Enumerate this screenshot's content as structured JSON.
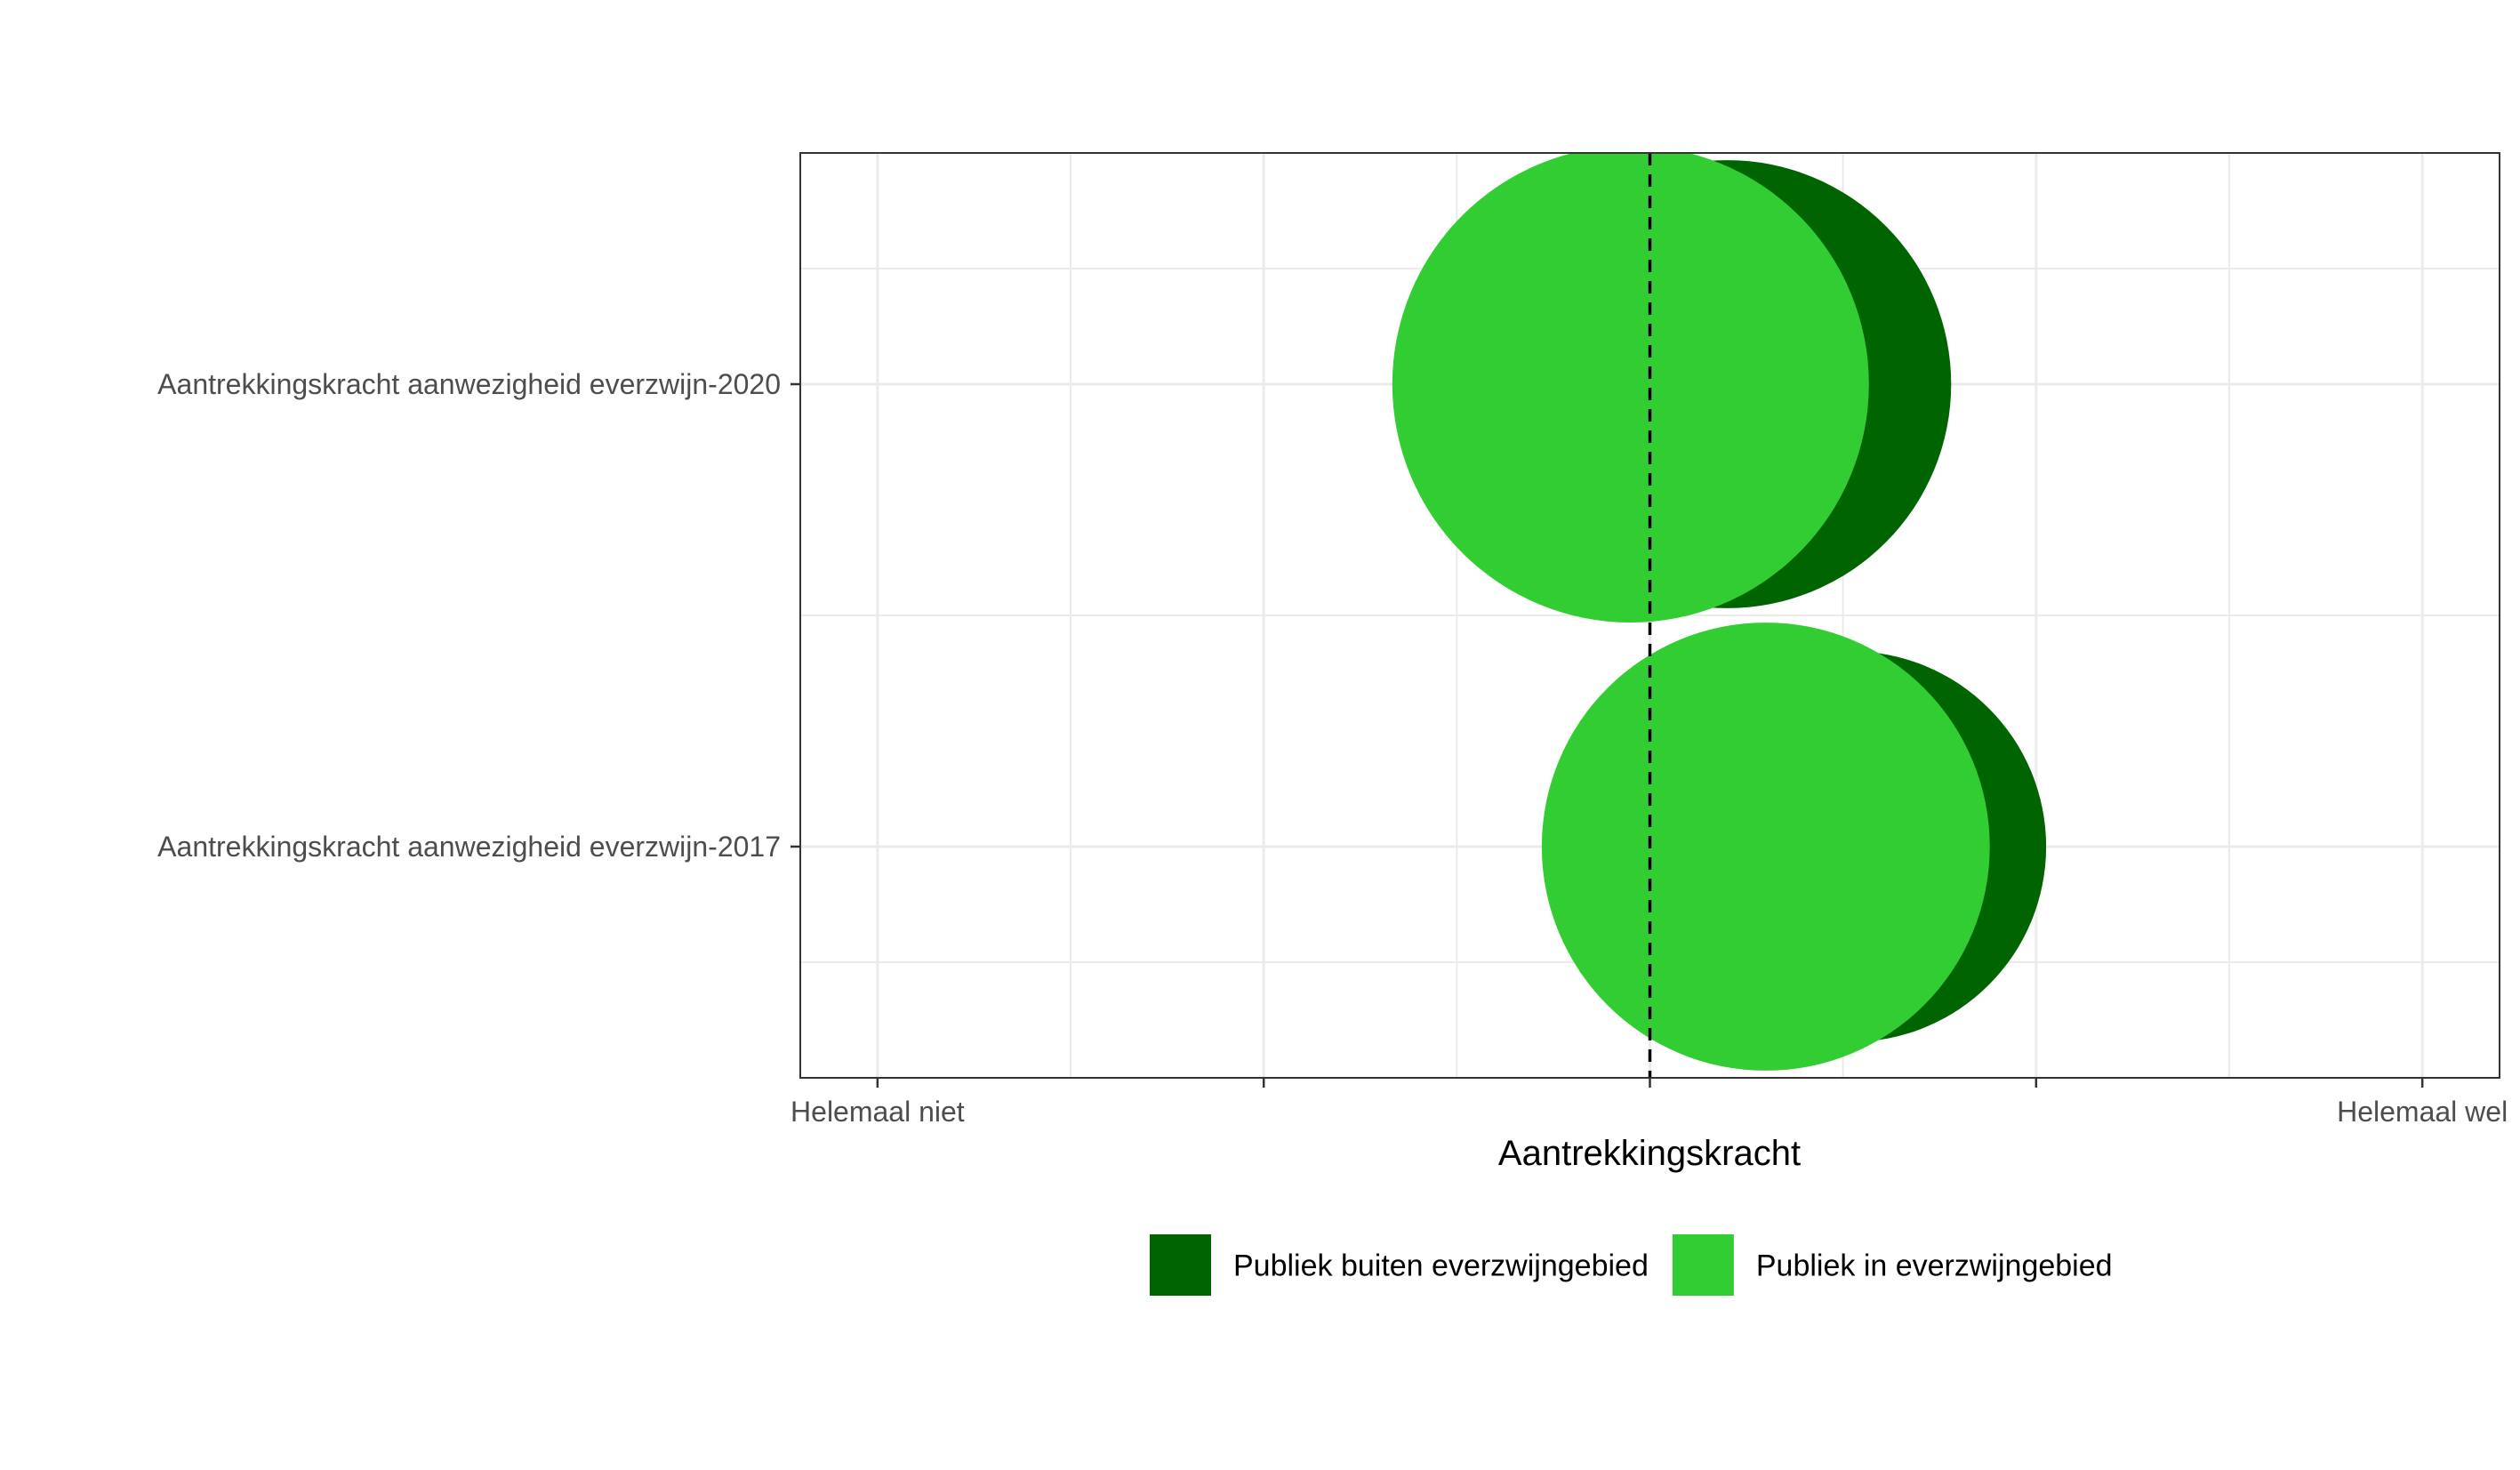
{
  "chart_data": {
    "type": "bubble",
    "title": "",
    "xlabel": "Aantrekkingskracht",
    "ylabel": "",
    "xlim": [
      0.8,
      5.2
    ],
    "x_ticks": [
      1,
      2,
      3,
      4,
      5
    ],
    "x_tick_labels": [
      "Helemaal niet",
      "",
      "",
      "",
      "Helemaal wel"
    ],
    "categories": [
      "Aantrekkingskracht aanwezigheid everzwijn-2017",
      "Aantrekkingskracht aanwezigheid everzwijn-2020"
    ],
    "reference_line_x": 3,
    "grid": true,
    "legend_position": "bottom",
    "series": [
      {
        "name": "Publiek buiten everzwijngebied",
        "color": "#006400",
        "points": [
          {
            "category": "Aantrekkingskracht aanwezigheid everzwijn-2017",
            "x": 3.52,
            "size": 0.82
          },
          {
            "category": "Aantrekkingskracht aanwezigheid everzwijn-2020",
            "x": 3.2,
            "size": 0.94
          }
        ]
      },
      {
        "name": "Publiek in everzwijngebied",
        "color": "#32CD32",
        "points": [
          {
            "category": "Aantrekkingskracht aanwezigheid everzwijn-2017",
            "x": 3.3,
            "size": 0.94
          },
          {
            "category": "Aantrekkingskracht aanwezigheid everzwijn-2020",
            "x": 2.95,
            "size": 1.0
          }
        ]
      }
    ]
  }
}
